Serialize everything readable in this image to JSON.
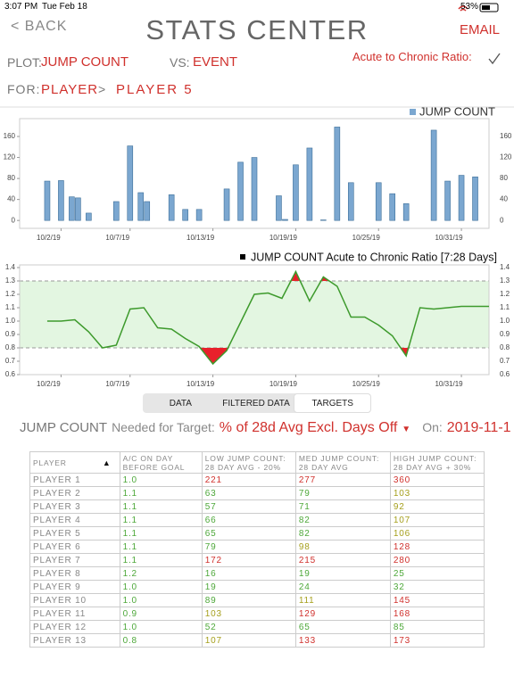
{
  "status_bar": {
    "time": "3:07 PM",
    "date": "Tue Feb 18",
    "battery": "53%"
  },
  "header": {
    "back": "< BACK",
    "title": "STATS CENTER",
    "action": "EMAIL"
  },
  "plot_controls": {
    "plot_label": "PLOT:",
    "plot_value": "JUMP COUNT",
    "vs_label": "VS:",
    "vs_value": "EVENT",
    "ratio_toggle": "Acute to Chronic Ratio:",
    "for_label": "FOR:",
    "for_group": "PLAYER",
    "separator": ">",
    "for_player": "PLAYER 5"
  },
  "chart_data": [
    {
      "type": "bar",
      "x": [
        "2019-10-01",
        "2019-10-02",
        "2019-10-03",
        "2019-10-03",
        "2019-10-04",
        "2019-10-06",
        "2019-10-07",
        "2019-10-08",
        "2019-10-08",
        "2019-10-10",
        "2019-10-11",
        "2019-10-12",
        "2019-10-14",
        "2019-10-15",
        "2019-10-16",
        "2019-10-18",
        "2019-10-18",
        "2019-10-19",
        "2019-10-20",
        "2019-10-21",
        "2019-10-22",
        "2019-10-23",
        "2019-10-25",
        "2019-10-26",
        "2019-10-27",
        "2019-10-29",
        "2019-10-30",
        "2019-10-31",
        "2019-11-01"
      ],
      "series": [
        {
          "name": "JUMP COUNT",
          "color": "#7ba7d0",
          "values": [
            75,
            76,
            45,
            43,
            14,
            36,
            142,
            53,
            36,
            49,
            21,
            21,
            60,
            111,
            120,
            47,
            2,
            106,
            138,
            1,
            178,
            72,
            72,
            51,
            32,
            172,
            75,
            86,
            83
          ]
        }
      ],
      "xlim": [
        "2019-09-29",
        "2019-11-02"
      ],
      "xticks": [
        {
          "value": "2019-10-02",
          "label": "10/2/19"
        },
        {
          "value": "2019-10-07",
          "label": "10/7/19"
        },
        {
          "value": "2019-10-13",
          "label": "10/13/19"
        },
        {
          "value": "2019-10-19",
          "label": "10/19/19"
        },
        {
          "value": "2019-10-25",
          "label": "10/25/19"
        },
        {
          "value": "2019-10-31",
          "label": "10/31/19"
        }
      ],
      "ylim": [
        -15,
        194
      ],
      "yticks": [
        0,
        40,
        80,
        120,
        160
      ],
      "legend": "top-right"
    },
    {
      "type": "line",
      "title": "JUMP COUNT Acute to Chronic Ratio [7:28 Days]",
      "x": [
        "2019-10-01",
        "2019-10-02",
        "2019-10-03",
        "2019-10-04",
        "2019-10-05",
        "2019-10-06",
        "2019-10-07",
        "2019-10-08",
        "2019-10-09",
        "2019-10-10",
        "2019-10-11",
        "2019-10-12",
        "2019-10-13",
        "2019-10-14",
        "2019-10-15",
        "2019-10-16",
        "2019-10-17",
        "2019-10-18",
        "2019-10-19",
        "2019-10-20",
        "2019-10-21",
        "2019-10-22",
        "2019-10-23",
        "2019-10-24",
        "2019-10-25",
        "2019-10-26",
        "2019-10-27",
        "2019-10-28",
        "2019-10-29",
        "2019-10-30",
        "2019-10-31",
        "2019-11-01",
        "2019-11-02"
      ],
      "series": [
        {
          "color": "#3d9a2c",
          "values": [
            1.0,
            1.0,
            1.01,
            0.92,
            0.8,
            0.82,
            1.09,
            1.1,
            0.95,
            0.94,
            0.87,
            0.81,
            0.68,
            0.78,
            0.99,
            1.2,
            1.21,
            1.17,
            1.37,
            1.15,
            1.33,
            1.26,
            1.03,
            1.03,
            0.97,
            0.89,
            0.74,
            1.1,
            1.09,
            1.1,
            1.11,
            1.11,
            1.11
          ]
        }
      ],
      "xlim": [
        "2019-09-29",
        "2019-11-02"
      ],
      "xticks": [
        {
          "value": "2019-10-02",
          "label": "10/2/19"
        },
        {
          "value": "2019-10-07",
          "label": "10/7/19"
        },
        {
          "value": "2019-10-13",
          "label": "10/13/19"
        },
        {
          "value": "2019-10-19",
          "label": "10/19/19"
        },
        {
          "value": "2019-10-25",
          "label": "10/25/19"
        },
        {
          "value": "2019-10-31",
          "label": "10/31/19"
        }
      ],
      "ylim": [
        0.6,
        1.42
      ],
      "yticks": [
        0.6,
        0.7,
        0.8,
        0.9,
        {
          "value": 1,
          "label": "1.0"
        },
        1.1,
        1.2,
        1.3,
        1.4
      ],
      "thresholds": [
        0.8,
        1.3
      ],
      "band_color": "#e3f6e1",
      "alert_color": "#e8212b"
    }
  ],
  "tabs": [
    "DATA",
    "FILTERED DATA",
    "TARGETS"
  ],
  "selected_tab": 2,
  "target": {
    "metric": "JUMP COUNT",
    "label": "Needed for Target:",
    "method": "% of 28d Avg Excl. Days Off",
    "on_label": "On:",
    "date": "2019-11-1"
  },
  "table": {
    "columns": [
      "PLAYER",
      "A/C ON DAY BEFORE GOAL",
      "LOW JUMP COUNT: 28 DAY AVG - 20%",
      "MED JUMP COUNT: 28 DAY AVG",
      "HIGH JUMP COUNT: 28 DAY AVG + 30%"
    ],
    "rows": [
      [
        "PLAYER 1",
        "1.0",
        "221",
        "277",
        "360"
      ],
      [
        "PLAYER 2",
        "1.1",
        "63",
        "79",
        "103"
      ],
      [
        "PLAYER 3",
        "1.1",
        "57",
        "71",
        "92"
      ],
      [
        "PLAYER 4",
        "1.1",
        "66",
        "82",
        "107"
      ],
      [
        "PLAYER 5",
        "1.1",
        "65",
        "82",
        "106"
      ],
      [
        "PLAYER 6",
        "1.1",
        "79",
        "98",
        "128"
      ],
      [
        "PLAYER 7",
        "1.1",
        "172",
        "215",
        "280"
      ],
      [
        "PLAYER 8",
        "1.2",
        "16",
        "19",
        "25"
      ],
      [
        "PLAYER 9",
        "1.0",
        "19",
        "24",
        "32"
      ],
      [
        "PLAYER 10",
        "1.0",
        "89",
        "111",
        "145"
      ],
      [
        "PLAYER 11",
        "0.9",
        "103",
        "129",
        "168"
      ],
      [
        "PLAYER 12",
        "1.0",
        "52",
        "65",
        "85"
      ],
      [
        "PLAYER 13",
        "0.8",
        "107",
        "133",
        "173"
      ]
    ],
    "colors": [
      [
        "#888",
        "#4ea83a",
        "#d0312d",
        "#d0312d",
        "#d0312d"
      ],
      [
        "#888",
        "#4ea83a",
        "#4ea83a",
        "#4ea83a",
        "#a59f1c"
      ],
      [
        "#888",
        "#4ea83a",
        "#4ea83a",
        "#4ea83a",
        "#a59f1c"
      ],
      [
        "#888",
        "#4ea83a",
        "#4ea83a",
        "#4ea83a",
        "#a59f1c"
      ],
      [
        "#888",
        "#4ea83a",
        "#4ea83a",
        "#4ea83a",
        "#a59f1c"
      ],
      [
        "#888",
        "#4ea83a",
        "#4ea83a",
        "#a59f1c",
        "#d0312d"
      ],
      [
        "#888",
        "#4ea83a",
        "#d0312d",
        "#d0312d",
        "#d0312d"
      ],
      [
        "#888",
        "#4ea83a",
        "#4ea83a",
        "#4ea83a",
        "#4ea83a"
      ],
      [
        "#888",
        "#4ea83a",
        "#4ea83a",
        "#4ea83a",
        "#4ea83a"
      ],
      [
        "#888",
        "#4ea83a",
        "#4ea83a",
        "#a59f1c",
        "#d0312d"
      ],
      [
        "#888",
        "#4ea83a",
        "#a59f1c",
        "#d0312d",
        "#d0312d"
      ],
      [
        "#888",
        "#4ea83a",
        "#4ea83a",
        "#4ea83a",
        "#4ea83a"
      ],
      [
        "#888",
        "#4ea83a",
        "#a59f1c",
        "#d0312d",
        "#d0312d"
      ]
    ]
  }
}
